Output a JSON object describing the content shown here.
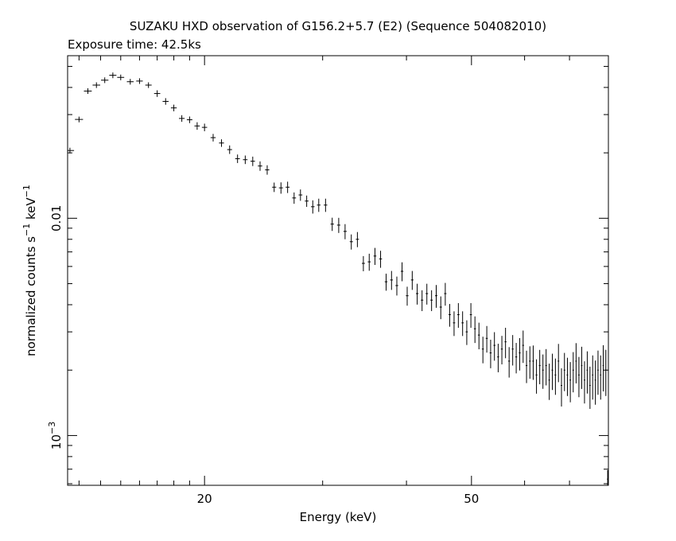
{
  "chart_data": {
    "type": "scatter",
    "title": "SUZAKU HXD observation of G156.2+5.7 (E2) (Sequence 504082010)",
    "subtitle": "Exposure time: 42.5ks",
    "xlabel": "Energy (keV)",
    "ylabel": {
      "prefix": "normalized counts s",
      "sup1": "−1",
      "mid": " keV",
      "sup2": "−1"
    },
    "x_scale": "log",
    "y_scale": "log",
    "xlim": [
      12.5,
      80
    ],
    "ylim": [
      0.00059,
      0.056
    ],
    "x_ticks": [
      {
        "value": 20,
        "label": "20"
      },
      {
        "value": 50,
        "label": "50"
      }
    ],
    "y_ticks": [
      {
        "value": 0.01,
        "label": "0.01"
      },
      {
        "value": 0.001,
        "label_base": "10",
        "label_exp": "−3"
      }
    ],
    "x": [
      12.6,
      13.0,
      13.4,
      13.8,
      14.2,
      14.6,
      15.0,
      15.5,
      16.0,
      16.5,
      17.0,
      17.5,
      18.0,
      18.5,
      19.0,
      19.5,
      20.0,
      20.6,
      21.2,
      21.8,
      22.4,
      23.0,
      23.6,
      24.2,
      24.8,
      25.4,
      26.0,
      26.6,
      27.2,
      27.8,
      28.4,
      29.0,
      29.6,
      30.3,
      31.0,
      31.7,
      32.4,
      33.1,
      33.8,
      34.5,
      35.2,
      35.9,
      36.6,
      37.3,
      38.0,
      38.7,
      39.4,
      40.1,
      40.8,
      41.5,
      42.2,
      42.9,
      43.6,
      44.3,
      45.0,
      45.7,
      46.4,
      47.1,
      47.8,
      48.5,
      49.2,
      49.9,
      50.6,
      51.3,
      52.0,
      52.7,
      53.4,
      54.1,
      54.8,
      55.5,
      56.2,
      56.9,
      57.6,
      58.3,
      59.0,
      59.7,
      60.4,
      61.1,
      61.8,
      62.5,
      63.2,
      63.9,
      64.6,
      65.3,
      66.0,
      66.7,
      67.4,
      68.1,
      68.8,
      69.5,
      70.2,
      70.9,
      71.6,
      72.3,
      73.0,
      73.7,
      74.4,
      75.1,
      75.8,
      76.5,
      77.2,
      77.9,
      78.6,
      79.3,
      79.8
    ],
    "y": [
      0.0205,
      0.0285,
      0.0385,
      0.041,
      0.0432,
      0.0455,
      0.0445,
      0.0425,
      0.0428,
      0.041,
      0.0375,
      0.0345,
      0.0322,
      0.0288,
      0.0284,
      0.0266,
      0.0262,
      0.0235,
      0.0222,
      0.0207,
      0.0188,
      0.0186,
      0.0183,
      0.0174,
      0.0167,
      0.0139,
      0.0138,
      0.0139,
      0.0124,
      0.0128,
      0.012,
      0.0113,
      0.0115,
      0.0115,
      0.0094,
      0.0093,
      0.0087,
      0.0078,
      0.008,
      0.0062,
      0.0063,
      0.0067,
      0.0065,
      0.0051,
      0.0052,
      0.0049,
      0.0057,
      0.0044,
      0.0052,
      0.0045,
      0.0042,
      0.0045,
      0.0042,
      0.0044,
      0.0039,
      0.0045,
      0.0036,
      0.0033,
      0.0036,
      0.0033,
      0.003,
      0.0036,
      0.0031,
      0.0029,
      0.0025,
      0.0028,
      0.0024,
      0.0026,
      0.0023,
      0.0025,
      0.0027,
      0.0022,
      0.0025,
      0.0023,
      0.0024,
      0.0026,
      0.0021,
      0.0022,
      0.0022,
      0.0019,
      0.0021,
      0.002,
      0.0021,
      0.0018,
      0.002,
      0.0019,
      0.0022,
      0.0017,
      0.002,
      0.0019,
      0.0018,
      0.002,
      0.0022,
      0.0019,
      0.0021,
      0.0018,
      0.002,
      0.0017,
      0.0019,
      0.0018,
      0.002,
      0.0019,
      0.0021,
      0.002,
      0.00063
    ],
    "x_half_width": 0.18,
    "y_err_frac": [
      0.03,
      0.03,
      0.03,
      0.03,
      0.03,
      0.03,
      0.03,
      0.03,
      0.03,
      0.03,
      0.035,
      0.035,
      0.035,
      0.035,
      0.035,
      0.04,
      0.04,
      0.04,
      0.04,
      0.045,
      0.045,
      0.045,
      0.05,
      0.05,
      0.05,
      0.05,
      0.06,
      0.06,
      0.06,
      0.06,
      0.06,
      0.07,
      0.07,
      0.07,
      0.07,
      0.08,
      0.08,
      0.08,
      0.08,
      0.08,
      0.09,
      0.09,
      0.09,
      0.09,
      0.1,
      0.1,
      0.1,
      0.1,
      0.1,
      0.11,
      0.11,
      0.11,
      0.11,
      0.12,
      0.12,
      0.12,
      0.12,
      0.13,
      0.13,
      0.13,
      0.13,
      0.13,
      0.14,
      0.14,
      0.14,
      0.14,
      0.15,
      0.15,
      0.15,
      0.15,
      0.16,
      0.16,
      0.16,
      0.16,
      0.17,
      0.17,
      0.17,
      0.17,
      0.18,
      0.18,
      0.18,
      0.18,
      0.19,
      0.19,
      0.19,
      0.19,
      0.2,
      0.2,
      0.2,
      0.2,
      0.21,
      0.21,
      0.21,
      0.21,
      0.22,
      0.22,
      0.22,
      0.22,
      0.23,
      0.23,
      0.23,
      0.23,
      0.24,
      0.24,
      0.1
    ],
    "marker": "cross-with-errorbars",
    "grid": false,
    "legend": "none",
    "colors": {
      "background": "#ffffff",
      "ink": "#000000"
    }
  }
}
